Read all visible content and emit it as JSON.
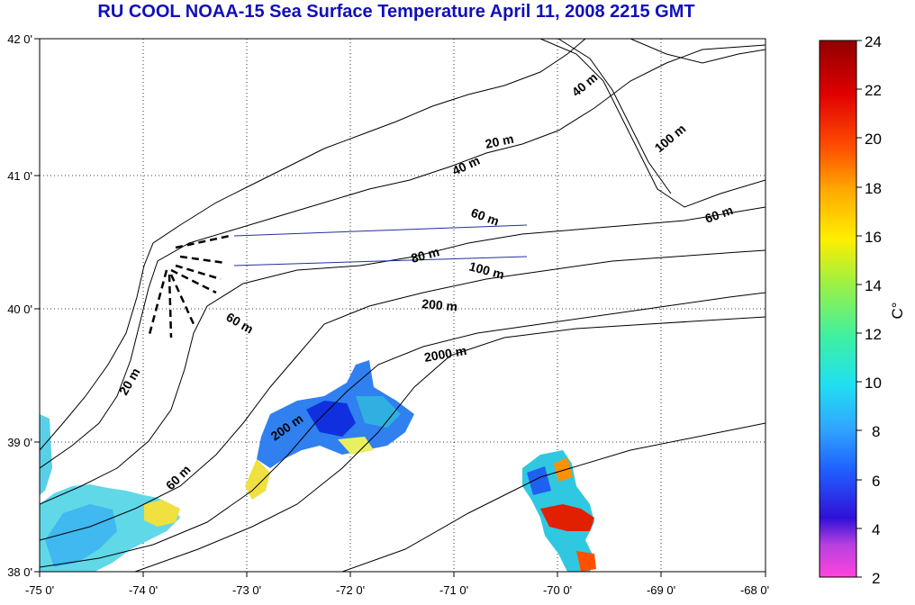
{
  "title": "RU COOL  NOAA-15 Sea Surface Temperature April 11, 2008 2215 GMT",
  "x_ticks": [
    "-75 0'",
    "-74 0'",
    "-73 0'",
    "-72 0'",
    "-71 0'",
    "-70 0'",
    "-69 0'",
    "-68 0'"
  ],
  "y_ticks": [
    "38 0'",
    "39 0'",
    "40 0'",
    "41 0'",
    "42 0'"
  ],
  "colorbar": {
    "label": "C°",
    "ticks": [
      "24",
      "22",
      "20",
      "18",
      "16",
      "14",
      "12",
      "10",
      "8",
      "6",
      "4",
      "2"
    ],
    "range": [
      2,
      24
    ]
  },
  "isobaths": [
    "20 m",
    "40 m",
    "40 m",
    "100 m",
    "60 m",
    "60 m",
    "80 m",
    "100 m",
    "200 m",
    "60 m",
    "2000 m",
    "20 m",
    "200 m",
    "60 m"
  ],
  "chart_data": {
    "type": "heatmap",
    "title": "RU COOL  NOAA-15 Sea Surface Temperature April 11, 2008 2215 GMT",
    "x_range": [
      -75,
      -68
    ],
    "y_range": [
      38,
      42
    ],
    "x_tick_labels": [
      "-75 0'",
      "-74 0'",
      "-73 0'",
      "-72 0'",
      "-71 0'",
      "-70 0'",
      "-69 0'",
      "-68 0'"
    ],
    "y_tick_labels": [
      "38 0'",
      "39 0'",
      "40 0'",
      "41 0'",
      "42 0'"
    ],
    "colorbar_range": [
      2,
      24
    ],
    "colorbar_label": "C°",
    "grid": "dotted",
    "isobath_labels": [
      "20 m",
      "40 m",
      "60 m",
      "80 m",
      "100 m",
      "200 m",
      "2000 m"
    ]
  },
  "colors": {
    "title": "#1010b8",
    "track_line": "#2030a0"
  }
}
